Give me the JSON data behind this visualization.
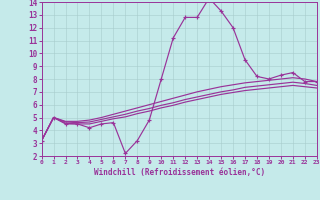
{
  "xlabel": "Windchill (Refroidissement éolien,°C)",
  "xlim": [
    0,
    23
  ],
  "ylim": [
    2,
    14
  ],
  "xticks": [
    0,
    1,
    2,
    3,
    4,
    5,
    6,
    7,
    8,
    9,
    10,
    11,
    12,
    13,
    14,
    15,
    16,
    17,
    18,
    19,
    20,
    21,
    22,
    23
  ],
  "yticks": [
    2,
    3,
    4,
    5,
    6,
    7,
    8,
    9,
    10,
    11,
    12,
    13,
    14
  ],
  "bg_color": "#c5eaea",
  "line_color": "#993399",
  "grid_color": "#a8cccc",
  "line1_x": [
    0,
    1,
    2,
    3,
    4,
    5,
    6,
    7,
    8,
    9,
    10,
    11,
    12,
    13,
    14,
    15,
    16,
    17,
    18,
    19,
    20,
    21,
    22,
    23
  ],
  "line1_y": [
    3.2,
    5.0,
    4.5,
    4.5,
    4.2,
    4.5,
    4.6,
    2.2,
    3.2,
    4.8,
    8.0,
    11.2,
    12.8,
    12.8,
    14.3,
    13.3,
    12.0,
    9.5,
    8.2,
    8.0,
    8.3,
    8.5,
    7.8,
    7.8
  ],
  "line2_x": [
    0,
    1,
    2,
    3,
    4,
    5,
    6,
    7,
    8,
    9,
    10,
    11,
    12,
    13,
    14,
    15,
    16,
    17,
    18,
    19,
    20,
    21,
    22,
    23
  ],
  "line2_y": [
    3.2,
    5.0,
    4.7,
    4.7,
    4.8,
    5.0,
    5.25,
    5.5,
    5.75,
    6.0,
    6.25,
    6.5,
    6.75,
    7.0,
    7.2,
    7.4,
    7.55,
    7.7,
    7.8,
    7.9,
    8.0,
    8.1,
    8.0,
    7.8
  ],
  "line3_x": [
    0,
    1,
    2,
    3,
    4,
    5,
    6,
    7,
    8,
    9,
    10,
    11,
    12,
    13,
    14,
    15,
    16,
    17,
    18,
    19,
    20,
    21,
    22,
    23
  ],
  "line3_y": [
    3.2,
    5.0,
    4.65,
    4.6,
    4.65,
    4.85,
    5.05,
    5.25,
    5.5,
    5.7,
    5.95,
    6.15,
    6.4,
    6.6,
    6.8,
    7.0,
    7.15,
    7.35,
    7.45,
    7.55,
    7.65,
    7.75,
    7.65,
    7.5
  ],
  "line4_x": [
    0,
    1,
    2,
    3,
    4,
    5,
    6,
    7,
    8,
    9,
    10,
    11,
    12,
    13,
    14,
    15,
    16,
    17,
    18,
    19,
    20,
    21,
    22,
    23
  ],
  "line4_y": [
    3.2,
    5.0,
    4.55,
    4.5,
    4.5,
    4.7,
    4.9,
    5.05,
    5.3,
    5.5,
    5.75,
    5.95,
    6.2,
    6.4,
    6.6,
    6.8,
    6.95,
    7.1,
    7.2,
    7.3,
    7.4,
    7.5,
    7.4,
    7.3
  ]
}
